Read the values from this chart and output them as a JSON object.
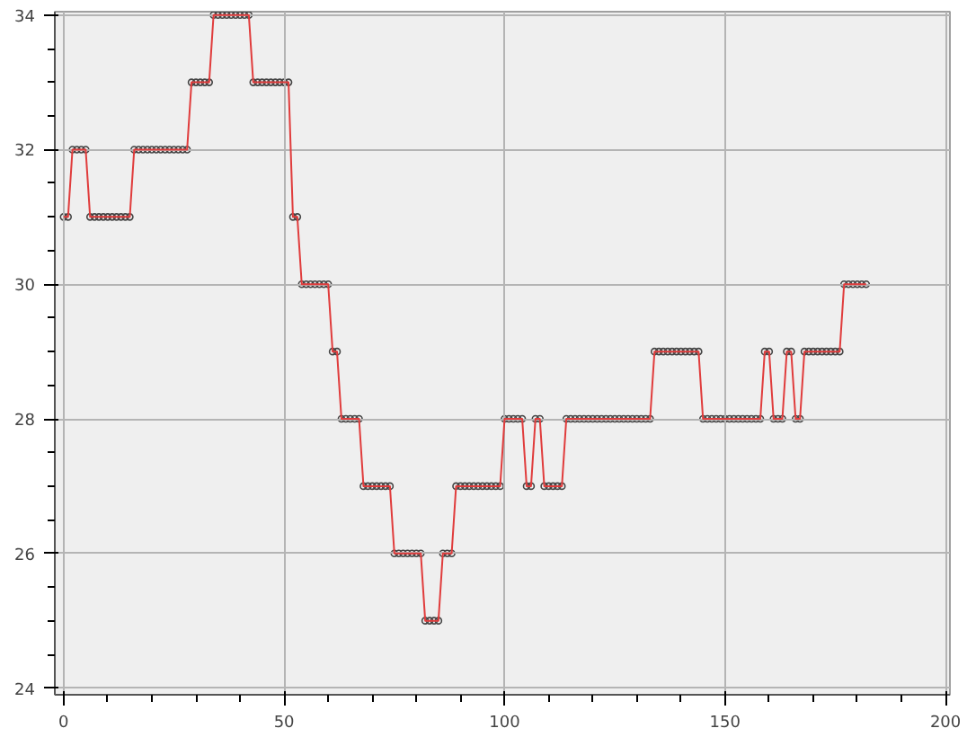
{
  "chart_data": {
    "type": "line",
    "marker": "circle",
    "line_style": "solid",
    "grid": true,
    "xlim": [
      -2,
      201
    ],
    "ylim": [
      23.9,
      34.05
    ],
    "xticks": [
      0,
      50,
      100,
      150,
      200
    ],
    "yticks": [
      24,
      26,
      28,
      30,
      32,
      34
    ],
    "x": [
      0,
      1,
      2,
      3,
      4,
      5,
      6,
      7,
      8,
      9,
      10,
      11,
      12,
      13,
      14,
      15,
      16,
      17,
      18,
      19,
      20,
      21,
      22,
      23,
      24,
      25,
      26,
      27,
      28,
      29,
      30,
      31,
      32,
      33,
      34,
      35,
      36,
      37,
      38,
      39,
      40,
      41,
      42,
      43,
      44,
      45,
      46,
      47,
      48,
      49,
      50,
      51,
      52,
      53,
      54,
      55,
      56,
      57,
      58,
      59,
      60,
      61,
      62,
      63,
      64,
      65,
      66,
      67,
      68,
      69,
      70,
      71,
      72,
      73,
      74,
      75,
      76,
      77,
      78,
      79,
      80,
      81,
      82,
      83,
      84,
      85,
      86,
      87,
      88,
      89,
      90,
      91,
      92,
      93,
      94,
      95,
      96,
      97,
      98,
      99,
      100,
      101,
      102,
      103,
      104,
      105,
      106,
      107,
      108,
      109,
      110,
      111,
      112,
      113,
      114,
      115,
      116,
      117,
      118,
      119,
      120,
      121,
      122,
      123,
      124,
      125,
      126,
      127,
      128,
      129,
      130,
      131,
      132,
      133,
      134,
      135,
      136,
      137,
      138,
      139,
      140,
      141,
      142,
      143,
      144,
      145,
      146,
      147,
      148,
      149,
      150,
      151,
      152,
      153,
      154,
      155,
      156,
      157,
      158,
      159,
      160,
      161,
      162,
      163,
      164,
      165,
      166,
      167,
      168,
      169,
      170,
      171,
      172,
      173,
      174,
      175,
      176,
      177,
      178,
      179,
      180,
      181,
      182
    ],
    "series": [
      {
        "color": "#e03c3c",
        "values": [
          31,
          31,
          32,
          32,
          32,
          32,
          31,
          31,
          31,
          31,
          31,
          31,
          31,
          31,
          31,
          31,
          32,
          32,
          32,
          32,
          32,
          32,
          32,
          32,
          32,
          32,
          32,
          32,
          32,
          33,
          33,
          33,
          33,
          33,
          34,
          34,
          34,
          34,
          34,
          34,
          34,
          34,
          34,
          33,
          33,
          33,
          33,
          33,
          33,
          33,
          33,
          33,
          31,
          31,
          30,
          30,
          30,
          30,
          30,
          30,
          30,
          29,
          29,
          28,
          28,
          28,
          28,
          28,
          27,
          27,
          27,
          27,
          27,
          27,
          27,
          26,
          26,
          26,
          26,
          26,
          26,
          26,
          25,
          25,
          25,
          25,
          26,
          26,
          26,
          27,
          27,
          27,
          27,
          27,
          27,
          27,
          27,
          27,
          27,
          27,
          28,
          28,
          28,
          28,
          28,
          27,
          27,
          28,
          28,
          27,
          27,
          27,
          27,
          27,
          28,
          28,
          28,
          28,
          28,
          28,
          28,
          28,
          28,
          28,
          28,
          28,
          28,
          28,
          28,
          28,
          28,
          28,
          28,
          28,
          29,
          29,
          29,
          29,
          29,
          29,
          29,
          29,
          29,
          29,
          29,
          28,
          28,
          28,
          28,
          28,
          28,
          28,
          28,
          28,
          28,
          28,
          28,
          28,
          28,
          29,
          29,
          28,
          28,
          28,
          29,
          29,
          28,
          28,
          29,
          29,
          29,
          29,
          29,
          29,
          29,
          29,
          29,
          30,
          30,
          30,
          30,
          30,
          30
        ]
      }
    ]
  }
}
